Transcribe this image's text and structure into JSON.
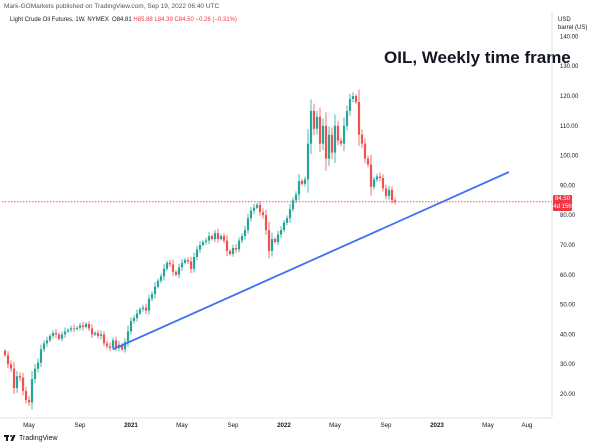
{
  "publisher_line": "Mark-GOMarkets published on TradingView.com, Sep 19, 2022 06:40 UTC",
  "symbol": {
    "name": "Light Crude Oil Futures, 1W, NYMEX",
    "open": "O84.81",
    "high": "H85.88",
    "low": "L84.39",
    "close": "C84.50",
    "change": "−0.26 (−0.31%)"
  },
  "currency": {
    "line1": "USD",
    "line2": "barrel (US)"
  },
  "annotation": "OIL, Weekly time frame",
  "price_tag": {
    "price": "84.50",
    "countdown": "4d 15h"
  },
  "footer": {
    "brand": "TradingView",
    "logo_icon": "tradingview-logo-icon"
  },
  "colors": {
    "up": "#26a69a",
    "down": "#ef5350",
    "trendline": "#4070f4",
    "price_line": "#f23645"
  },
  "chart_data": {
    "type": "candlestick",
    "title": "",
    "xlabel": "",
    "ylabel": "",
    "ylim": [
      10,
      140
    ],
    "y_ticks": [
      "20.00",
      "30.00",
      "40.00",
      "50.00",
      "60.00",
      "70.00",
      "80.00",
      "90.00",
      "100.00",
      "110.00",
      "120.00",
      "130.00",
      "140.00"
    ],
    "x_ticks": [
      {
        "label": "May",
        "week": 8
      },
      {
        "label": "Sep",
        "week": 25
      },
      {
        "label": "2021",
        "week": 42
      },
      {
        "label": "May",
        "week": 59
      },
      {
        "label": "Sep",
        "week": 76
      },
      {
        "label": "2022",
        "week": 93
      },
      {
        "label": "May",
        "week": 110
      },
      {
        "label": "Sep",
        "week": 127
      },
      {
        "label": "2023",
        "week": 144
      },
      {
        "label": "May",
        "week": 161
      },
      {
        "label": "Aug",
        "week": 174
      }
    ],
    "x_range_weeks": [
      0,
      184
    ],
    "series": [
      {
        "name": "Light Crude Oil Futures",
        "closes": [
          33.0,
          30.0,
          28.5,
          22.0,
          26.0,
          25.5,
          21.0,
          18.0,
          17.2,
          25.0,
          28.5,
          30.5,
          35.0,
          37.0,
          38.0,
          39.5,
          40.5,
          40.0,
          38.5,
          40.0,
          41.0,
          41.5,
          42.0,
          41.8,
          42.2,
          43.0,
          42.5,
          43.5,
          42.0,
          40.0,
          40.5,
          39.5,
          40.0,
          37.0,
          36.0,
          35.5,
          38.0,
          35.5,
          36.5,
          35.0,
          37.5,
          41.0,
          44.5,
          45.5,
          47.0,
          48.5,
          49.0,
          48.0,
          52.0,
          53.5,
          56.0,
          58.0,
          59.5,
          62.0,
          64.0,
          63.5,
          61.0,
          60.0,
          62.5,
          64.0,
          65.0,
          64.5,
          62.0,
          66.0,
          68.5,
          70.0,
          71.0,
          71.5,
          73.0,
          72.0,
          74.0,
          72.0,
          73.0,
          71.5,
          68.0,
          67.0,
          69.0,
          68.5,
          71.5,
          73.0,
          75.0,
          79.0,
          81.5,
          82.5,
          83.5,
          81.0,
          80.0,
          75.0,
          68.0,
          72.0,
          71.0,
          73.5,
          75.0,
          77.5,
          79.0,
          82.0,
          85.0,
          87.0,
          91.5,
          90.5,
          92.0,
          104.0,
          115.0,
          109.0,
          113.0,
          104.0,
          110.0,
          99.0,
          107.0,
          101.0,
          110.0,
          105.0,
          104.0,
          110.0,
          115.0,
          119.0,
          120.0,
          118.0,
          107.0,
          104.0,
          99.0,
          97.0,
          89.5,
          92.0,
          93.0,
          92.5,
          89.0,
          86.5,
          88.5,
          85.0,
          84.5
        ],
        "last_price": 84.5
      }
    ],
    "trendline": {
      "from": {
        "week": 36,
        "value": 35.0
      },
      "to": {
        "week": 168,
        "value": 94.5
      }
    },
    "current_price_line": 84.5,
    "grid": false,
    "legend": "none"
  }
}
